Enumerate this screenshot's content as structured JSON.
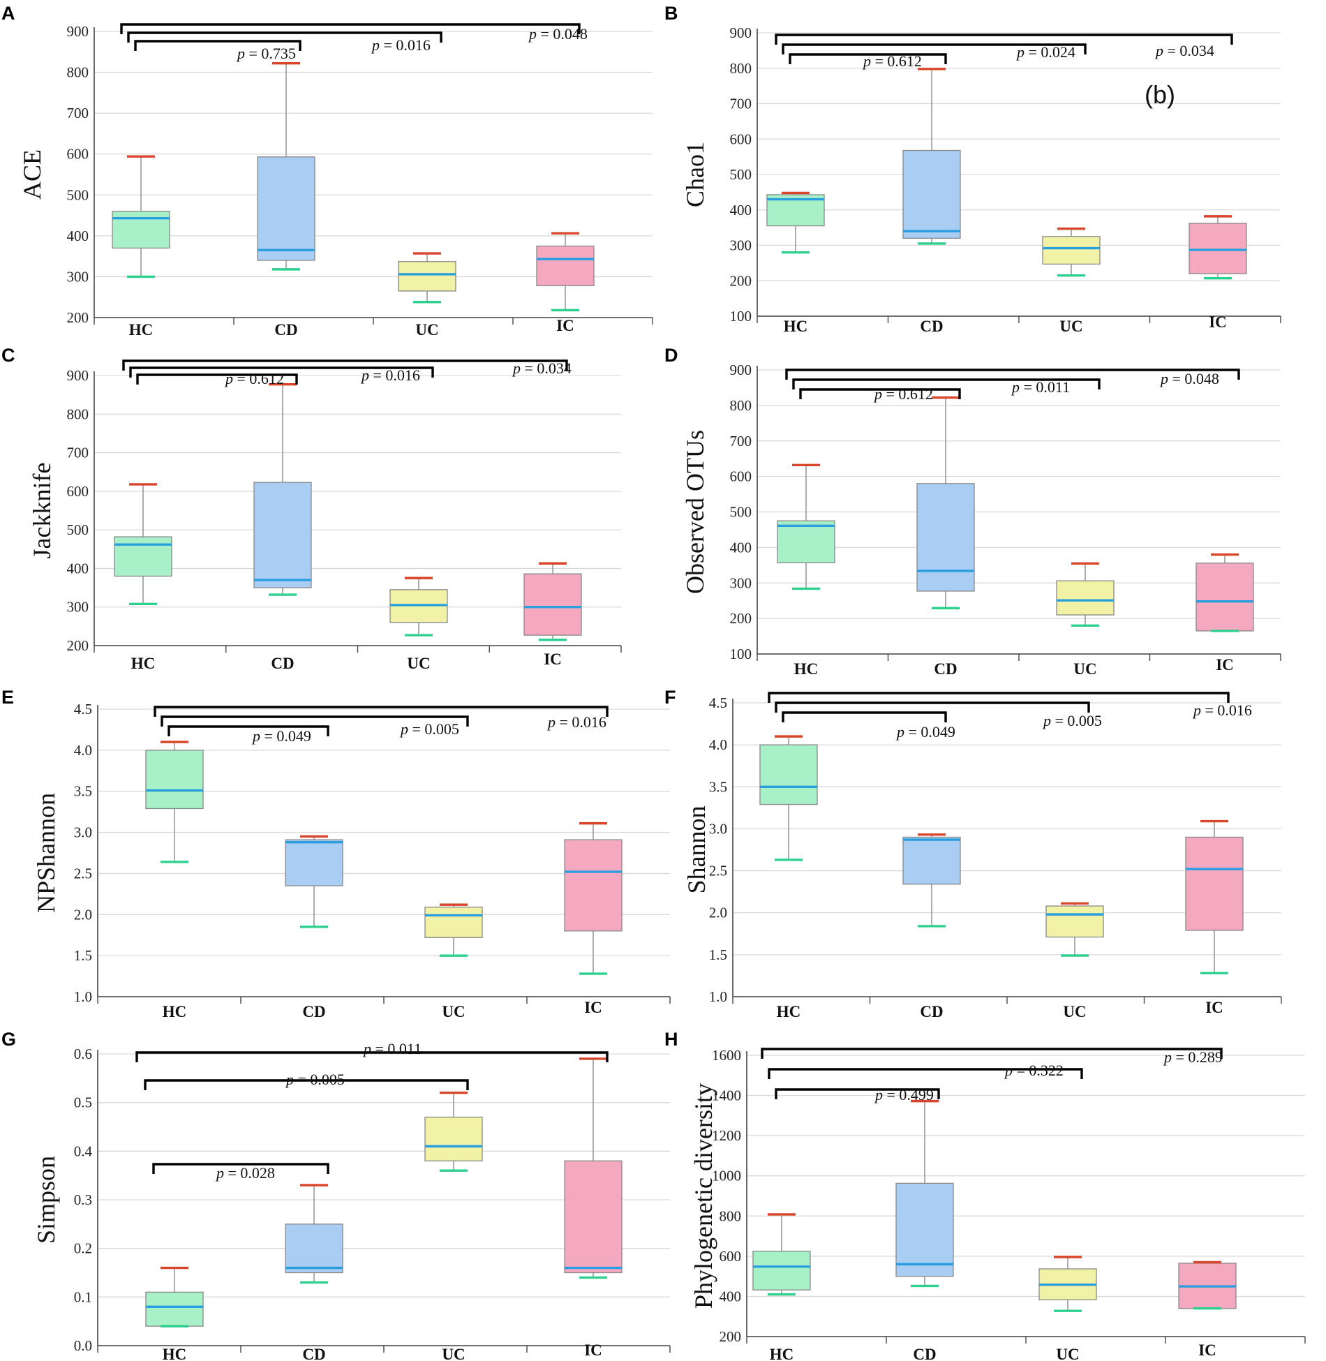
{
  "figure": {
    "title": ""
  },
  "colors": {
    "HC": "#a8f0c8",
    "CD": "#a9cdf3",
    "UC": "#f2f2a6",
    "IC": "#f4a9c0",
    "top_cap": "#d9452b",
    "bottom_cap": "#2ed08f",
    "median": "#2a9fe0",
    "bracket": "#000000"
  },
  "chart_data": [
    {
      "panel": "A",
      "type": "box",
      "ylabel": "ACE",
      "categories": [
        "HC",
        "CD",
        "UC",
        "IC"
      ],
      "ylim": [
        200,
        900
      ],
      "yticks": [
        "200",
        "300",
        "400",
        "500",
        "600",
        "700",
        "800",
        "900"
      ],
      "boxes": [
        {
          "min": 300,
          "q1": 370,
          "median": 443,
          "q3": 460,
          "max": 594
        },
        {
          "min": 318,
          "q1": 340,
          "median": 365,
          "q3": 593,
          "max": 822
        },
        {
          "min": 238,
          "q1": 265,
          "median": 306,
          "q3": 337,
          "max": 357
        },
        {
          "min": 218,
          "q1": 278,
          "median": 343,
          "q3": 375,
          "max": 406
        }
      ],
      "comparisons": [
        {
          "from": 0,
          "to": 1,
          "p": "0.735",
          "level": 0
        },
        {
          "from": 0,
          "to": 2,
          "p": "0.016",
          "level": 1
        },
        {
          "from": 0,
          "to": 3,
          "p": "0.048",
          "level": 2
        }
      ]
    },
    {
      "panel": "B",
      "type": "box",
      "ylabel": "Chao1",
      "categories": [
        "HC",
        "CD",
        "UC",
        "IC"
      ],
      "ylim": [
        100,
        900
      ],
      "yticks": [
        "100",
        "200",
        "300",
        "400",
        "500",
        "600",
        "700",
        "800",
        "900"
      ],
      "boxes": [
        {
          "min": 280,
          "q1": 355,
          "median": 430,
          "q3": 443,
          "max": 448
        },
        {
          "min": 305,
          "q1": 320,
          "median": 340,
          "q3": 568,
          "max": 798
        },
        {
          "min": 215,
          "q1": 247,
          "median": 292,
          "q3": 325,
          "max": 347
        },
        {
          "min": 207,
          "q1": 220,
          "median": 287,
          "q3": 362,
          "max": 382
        }
      ],
      "comparisons": [
        {
          "from": 0,
          "to": 1,
          "p": "0.612",
          "level": 0
        },
        {
          "from": 0,
          "to": 2,
          "p": "0.024",
          "level": 1
        },
        {
          "from": 0,
          "to": 3,
          "p": "0.034",
          "level": 2
        }
      ],
      "annotation": "(b)"
    },
    {
      "panel": "C",
      "type": "box",
      "ylabel": "Jackknife",
      "categories": [
        "HC",
        "CD",
        "UC",
        "IC"
      ],
      "ylim": [
        200,
        900
      ],
      "yticks": [
        "200",
        "300",
        "400",
        "500",
        "600",
        "700",
        "800",
        "900"
      ],
      "boxes": [
        {
          "min": 308,
          "q1": 380,
          "median": 462,
          "q3": 482,
          "max": 618
        },
        {
          "min": 332,
          "q1": 350,
          "median": 370,
          "q3": 623,
          "max": 877
        },
        {
          "min": 227,
          "q1": 260,
          "median": 305,
          "q3": 345,
          "max": 375
        },
        {
          "min": 215,
          "q1": 227,
          "median": 300,
          "q3": 386,
          "max": 413
        }
      ],
      "comparisons": [
        {
          "from": 0,
          "to": 1,
          "p": "0.612",
          "level": 0
        },
        {
          "from": 0,
          "to": 2,
          "p": "0.016",
          "level": 1
        },
        {
          "from": 0,
          "to": 3,
          "p": "0.034",
          "level": 2
        }
      ]
    },
    {
      "panel": "D",
      "type": "box",
      "ylabel": "Observed OTUs",
      "categories": [
        "HC",
        "CD",
        "UC",
        "IC"
      ],
      "ylim": [
        100,
        900
      ],
      "yticks": [
        "100",
        "200",
        "300",
        "400",
        "500",
        "600",
        "700",
        "800",
        "900"
      ],
      "boxes": [
        {
          "min": 284,
          "q1": 357,
          "median": 461,
          "q3": 475,
          "max": 632
        },
        {
          "min": 229,
          "q1": 277,
          "median": 334,
          "q3": 580,
          "max": 822
        },
        {
          "min": 180,
          "q1": 210,
          "median": 251,
          "q3": 306,
          "max": 355
        },
        {
          "min": 165,
          "q1": 165,
          "median": 248,
          "q3": 356,
          "max": 380
        }
      ],
      "comparisons": [
        {
          "from": 0,
          "to": 1,
          "p": "0.612",
          "level": 0
        },
        {
          "from": 0,
          "to": 2,
          "p": "0.011",
          "level": 1
        },
        {
          "from": 0,
          "to": 3,
          "p": "0.048",
          "level": 2
        }
      ]
    },
    {
      "panel": "E",
      "type": "box",
      "ylabel": "NPShannon",
      "categories": [
        "HC",
        "CD",
        "UC",
        "IC"
      ],
      "ylim": [
        1.0,
        4.5
      ],
      "yticks": [
        "1.0",
        "1.5",
        "2.0",
        "2.5",
        "3.0",
        "3.5",
        "4.0",
        "4.5"
      ],
      "boxes": [
        {
          "min": 2.64,
          "q1": 3.29,
          "median": 3.51,
          "q3": 4.0,
          "max": 4.1
        },
        {
          "min": 1.85,
          "q1": 2.35,
          "median": 2.88,
          "q3": 2.91,
          "max": 2.95
        },
        {
          "min": 1.5,
          "q1": 1.72,
          "median": 1.99,
          "q3": 2.09,
          "max": 2.12
        },
        {
          "min": 1.28,
          "q1": 1.8,
          "median": 2.52,
          "q3": 2.91,
          "max": 3.11
        }
      ],
      "comparisons": [
        {
          "from": 0,
          "to": 1,
          "p": "0.049",
          "level": 0
        },
        {
          "from": 0,
          "to": 2,
          "p": "0.005",
          "level": 1
        },
        {
          "from": 0,
          "to": 3,
          "p": "0.016",
          "level": 2
        }
      ]
    },
    {
      "panel": "F",
      "type": "box",
      "ylabel": "Shannon",
      "categories": [
        "HC",
        "CD",
        "UC",
        "IC"
      ],
      "ylim": [
        1.0,
        4.5
      ],
      "yticks": [
        "1.0",
        "1.5",
        "2.0",
        "2.5",
        "3.0",
        "3.5",
        "4.0",
        "4.5"
      ],
      "boxes": [
        {
          "min": 2.63,
          "q1": 3.29,
          "median": 3.5,
          "q3": 4.0,
          "max": 4.1
        },
        {
          "min": 1.84,
          "q1": 2.34,
          "median": 2.87,
          "q3": 2.9,
          "max": 2.93
        },
        {
          "min": 1.49,
          "q1": 1.71,
          "median": 1.98,
          "q3": 2.08,
          "max": 2.11
        },
        {
          "min": 1.28,
          "q1": 1.79,
          "median": 2.52,
          "q3": 2.9,
          "max": 3.09
        }
      ],
      "comparisons": [
        {
          "from": 0,
          "to": 1,
          "p": "0.049",
          "level": 0
        },
        {
          "from": 0,
          "to": 2,
          "p": "0.005",
          "level": 1
        },
        {
          "from": 0,
          "to": 3,
          "p": "0.016",
          "level": 2
        }
      ]
    },
    {
      "panel": "G",
      "type": "box",
      "ylabel": "Simpson",
      "categories": [
        "HC",
        "CD",
        "UC",
        "IC"
      ],
      "ylim": [
        0.0,
        0.6
      ],
      "yticks": [
        "0.0",
        "0.1",
        "0.2",
        "0.3",
        "0.4",
        "0.5",
        "0.6"
      ],
      "boxes": [
        {
          "min": 0.04,
          "q1": 0.04,
          "median": 0.08,
          "q3": 0.11,
          "max": 0.16
        },
        {
          "min": 0.13,
          "q1": 0.15,
          "median": 0.16,
          "q3": 0.25,
          "max": 0.33
        },
        {
          "min": 0.36,
          "q1": 0.38,
          "median": 0.41,
          "q3": 0.47,
          "max": 0.52
        },
        {
          "min": 0.14,
          "q1": 0.15,
          "median": 0.16,
          "q3": 0.38,
          "max": 0.59
        }
      ],
      "comparisons": [
        {
          "from": 0,
          "to": 1,
          "p": "0.028",
          "level": 0
        },
        {
          "from": 0,
          "to": 2,
          "p": "0.005",
          "level": 1
        },
        {
          "from": 0,
          "to": 3,
          "p": "0.011",
          "level": 2
        }
      ]
    },
    {
      "panel": "H",
      "type": "box",
      "ylabel": "Phylogenetic diversity",
      "categories": [
        "HC",
        "CD",
        "UC",
        "IC"
      ],
      "ylim": [
        200,
        1600
      ],
      "yticks": [
        "200",
        "400",
        "600",
        "800",
        "1000",
        "1200",
        "1400",
        "1600"
      ],
      "boxes": [
        {
          "min": 410,
          "q1": 432,
          "median": 548,
          "q3": 625,
          "max": 808
        },
        {
          "min": 452,
          "q1": 500,
          "median": 560,
          "q3": 963,
          "max": 1372
        },
        {
          "min": 328,
          "q1": 383,
          "median": 458,
          "q3": 537,
          "max": 596
        },
        {
          "min": 340,
          "q1": 340,
          "median": 450,
          "q3": 565,
          "max": 570
        }
      ],
      "comparisons": [
        {
          "from": 0,
          "to": 1,
          "p": "0.499",
          "level": 0
        },
        {
          "from": 0,
          "to": 2,
          "p": "0.322",
          "level": 1
        },
        {
          "from": 0,
          "to": 3,
          "p": "0.289",
          "level": 2
        }
      ]
    }
  ]
}
